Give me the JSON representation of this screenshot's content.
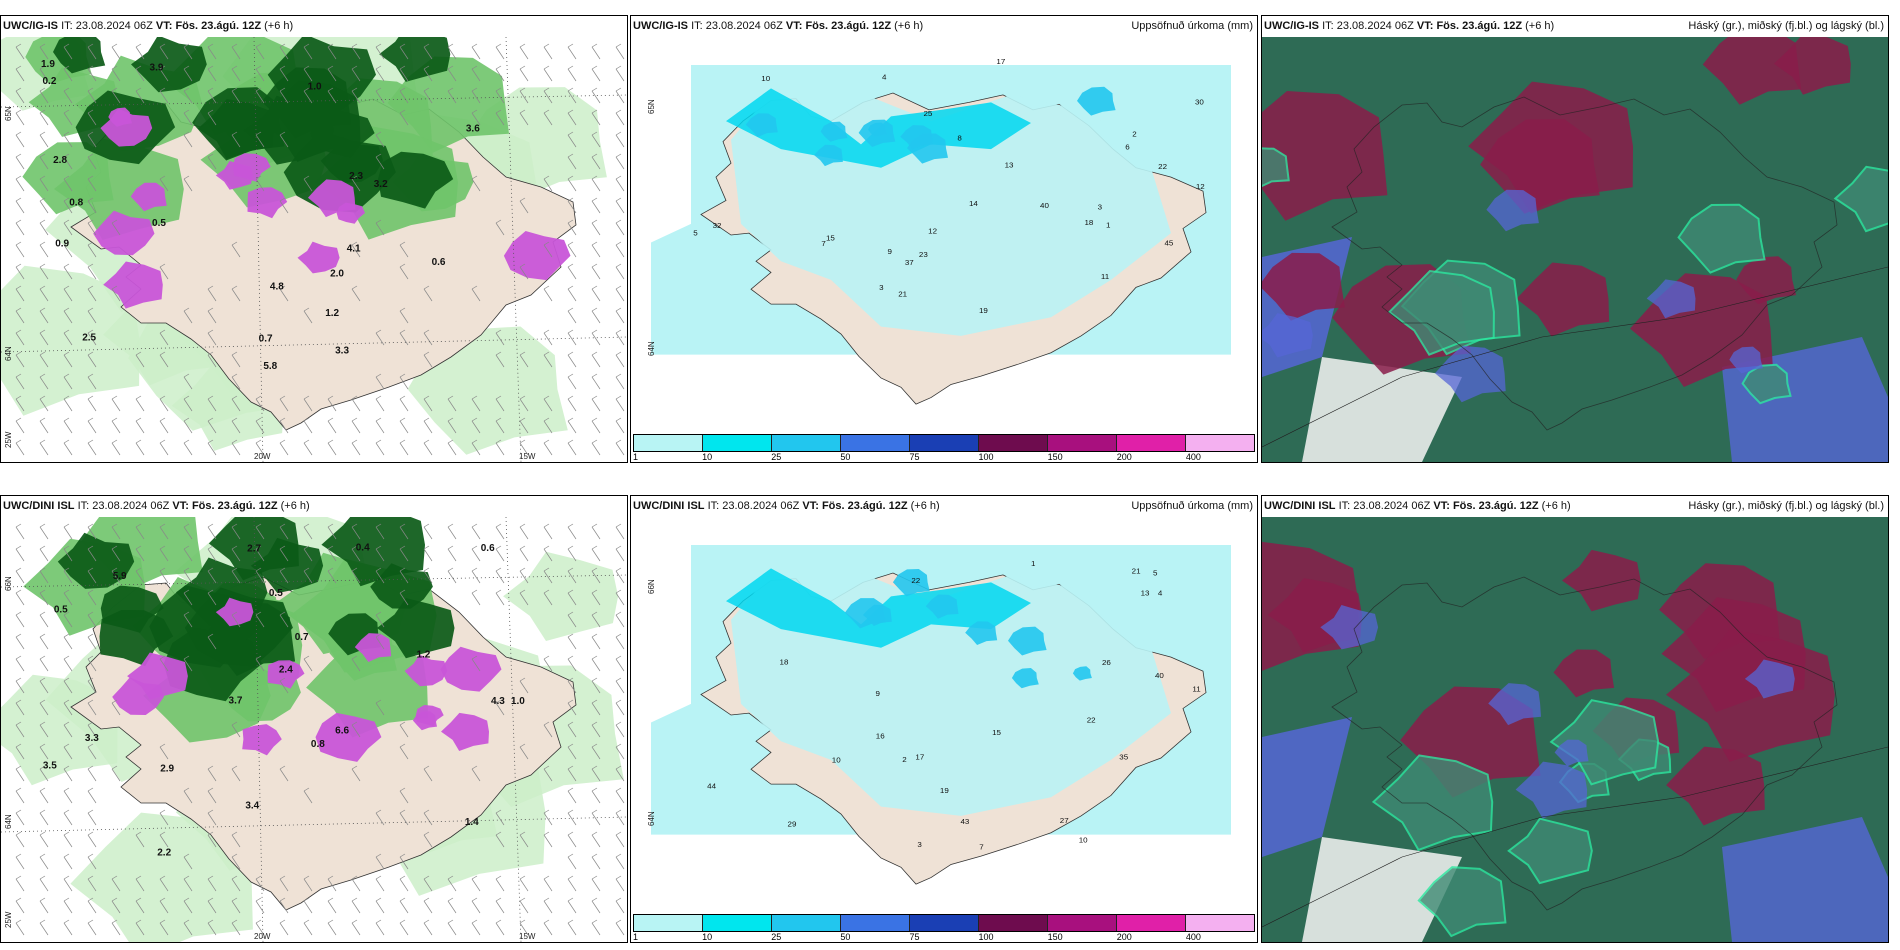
{
  "panels": [
    {
      "id": "p1",
      "type": "precip_wind",
      "header": {
        "model": "UWC/IG-IS",
        "it_label": "IT:",
        "it": "23.08.2024 06Z",
        "vt_label": "VT:",
        "vt": "Fös. 23.ágú. 12Z",
        "lead": "(+6 h)"
      },
      "lat_labels": [
        "65N",
        "64N"
      ],
      "lon_labels": [
        "25W",
        "20W",
        "15W"
      ],
      "sample_values": [
        "1.9",
        "2.5",
        "3.6",
        "0.5",
        "0.7",
        "1.0",
        "0.2",
        "0.9",
        "2.0",
        "3.3",
        "4.1",
        "5.8",
        "3.2",
        "0.6",
        "1.2",
        "0.8",
        "2.8",
        "3.9",
        "2.3",
        "4.8"
      ]
    },
    {
      "id": "p2",
      "type": "accum",
      "header": {
        "model": "UWC/IG-IS",
        "it_label": "IT:",
        "it": "23.08.2024 06Z",
        "vt_label": "VT:",
        "vt": "Fös. 23.ágú. 12Z",
        "lead": "(+6 h)",
        "title": "Uppsöfnuð úrkoma (mm)"
      },
      "lat_labels": [
        "65N",
        "64N"
      ],
      "sample_values": [
        "3",
        "6",
        "14",
        "21",
        "13",
        "12",
        "45",
        "40",
        "37",
        "23",
        "17",
        "19",
        "11",
        "25",
        "8",
        "5",
        "22",
        "30",
        "18",
        "10",
        "12",
        "9",
        "4",
        "2",
        "1",
        "3",
        "15",
        "32",
        "7"
      ]
    },
    {
      "id": "p3",
      "type": "cloud",
      "header": {
        "model": "UWC/IG-IS",
        "it_label": "IT:",
        "it": "23.08.2024 06Z",
        "vt_label": "VT:",
        "vt": "Fös. 23.ágú. 12Z",
        "lead": "(+6 h)",
        "title": "Háský (gr.), miðský (fj.bl.) og lágský (bl.)"
      }
    },
    {
      "id": "p4",
      "type": "precip_wind",
      "header": {
        "model": "UWC/DINI ISL",
        "it_label": "IT:",
        "it": "23.08.2024 06Z",
        "vt_label": "VT:",
        "vt": "Fös. 23.ágú. 12Z",
        "lead": "(+6 h)"
      },
      "lat_labels": [
        "66N",
        "64N"
      ],
      "lon_labels": [
        "25W",
        "20W",
        "15W"
      ],
      "sample_values": [
        "2.2",
        "0.7",
        "0.5",
        "2.7",
        "3.3",
        "5.9",
        "6.6",
        "1.2",
        "0.8",
        "0.6",
        "3.4",
        "2.9",
        "1.4",
        "4.3",
        "3.7",
        "0.4",
        "0.5",
        "1.0",
        "3.5",
        "2.4"
      ]
    },
    {
      "id": "p5",
      "type": "accum",
      "header": {
        "model": "UWC/DINI ISL",
        "it_label": "IT:",
        "it": "23.08.2024 06Z",
        "vt_label": "VT:",
        "vt": "Fös. 23.ágú. 12Z",
        "lead": "(+6 h)",
        "title": "Uppsöfnuð úrkoma (mm)"
      },
      "lat_labels": [
        "66N",
        "64N"
      ],
      "sample_values": [
        "2",
        "16",
        "40",
        "43",
        "44",
        "17",
        "18",
        "22",
        "21",
        "35",
        "29",
        "13",
        "10",
        "15",
        "27",
        "19",
        "11",
        "26",
        "10",
        "22",
        "9",
        "7",
        "1",
        "3",
        "5",
        "4"
      ]
    },
    {
      "id": "p6",
      "type": "cloud",
      "header": {
        "model": "UWC/DINI ISL",
        "it_label": "IT:",
        "it": "23.08.2024 06Z",
        "vt_label": "VT:",
        "vt": "Fös. 23.ágú. 12Z",
        "lead": "(+6 h)",
        "title": "Hásky (gr.), miðský (fj.bl.) og lágský (bl.)"
      }
    }
  ],
  "colorbar": {
    "labels": [
      "1",
      "10",
      "25",
      "50",
      "75",
      "100",
      "150",
      "200",
      "400"
    ],
    "colors": [
      "#b8f4f4",
      "#00e6ee",
      "#22c6ee",
      "#3a73e4",
      "#1a3fb4",
      "#6e0c4e",
      "#a8107e",
      "#e020a8",
      "#f4b0f0"
    ]
  },
  "colors": {
    "land": "#efe2d6",
    "sea": "#ffffff",
    "precip_light": "#cdeec9",
    "precip_mid": "#6fc46a",
    "precip_dark": "#0b5a17",
    "precip_heavy": "#c855d8",
    "accum_light": "#b9f3f5",
    "accum_mid": "#00d7f0",
    "cloud_high": "#2e6b55",
    "cloud_mid": "#8a1c4a",
    "cloud_low": "#5566d6",
    "cloud_edge": "#2de8a0"
  }
}
